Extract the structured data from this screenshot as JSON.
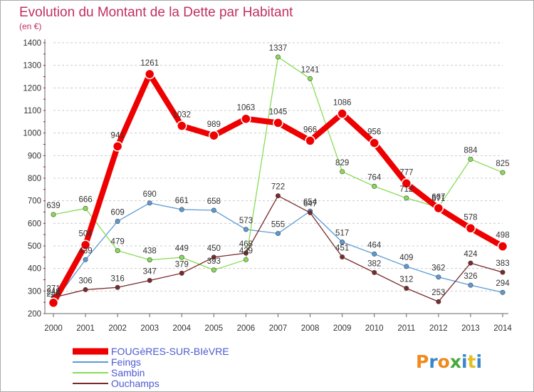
{
  "chart_data": {
    "type": "line",
    "title": "Evolution du Montant de la Dette par Habitant",
    "subtitle": "(en €)",
    "xlabel": "",
    "ylabel": "",
    "x": [
      "2000",
      "2001",
      "2002",
      "2003",
      "2004",
      "2005",
      "2006",
      "2007",
      "2008",
      "2009",
      "2010",
      "2011",
      "2012",
      "2013",
      "2014"
    ],
    "ylim": [
      200,
      1400
    ],
    "yticks": [
      200,
      300,
      400,
      500,
      600,
      700,
      800,
      900,
      1000,
      1100,
      1200,
      1300,
      1400
    ],
    "grid": "horizontal-dashed",
    "legend_position": "bottom-left",
    "series": [
      {
        "name": "FOUGèRES-SUR-BIèVRE",
        "color": "#ee0000",
        "emphasis": true,
        "values": [
          248,
          504,
          941,
          1261,
          1032,
          989,
          1063,
          1045,
          966,
          1086,
          956,
          777,
          667,
          578,
          498
        ]
      },
      {
        "name": "Feings",
        "color": "#5b9bd5",
        "emphasis": false,
        "values": [
          248,
          439,
          609,
          690,
          661,
          658,
          573,
          555,
          654,
          517,
          464,
          409,
          362,
          326,
          294
        ]
      },
      {
        "name": "Sambin",
        "color": "#88dd55",
        "emphasis": false,
        "values": [
          639,
          666,
          479,
          438,
          449,
          393,
          439,
          1337,
          1241,
          829,
          764,
          712,
          671,
          884,
          825
        ]
      },
      {
        "name": "Ouchamps",
        "color": "#7a2a2a",
        "emphasis": false,
        "values": [
          271,
          306,
          316,
          347,
          379,
          450,
          468,
          722,
          647,
          451,
          382,
          312,
          253,
          424,
          383
        ]
      }
    ]
  },
  "brand": {
    "logo_text": "Proxiti",
    "colors": [
      "#f08a1c",
      "#3a86c8",
      "#f08a1c",
      "#4aa83a",
      "#3a86c8",
      "#e0c020",
      "#3a86c8"
    ]
  },
  "colors": {
    "title": "#c03060",
    "axis": "#666666",
    "grid": "#cccccc",
    "tick_label": "#333333",
    "legend_text": "#4a5bd0"
  }
}
